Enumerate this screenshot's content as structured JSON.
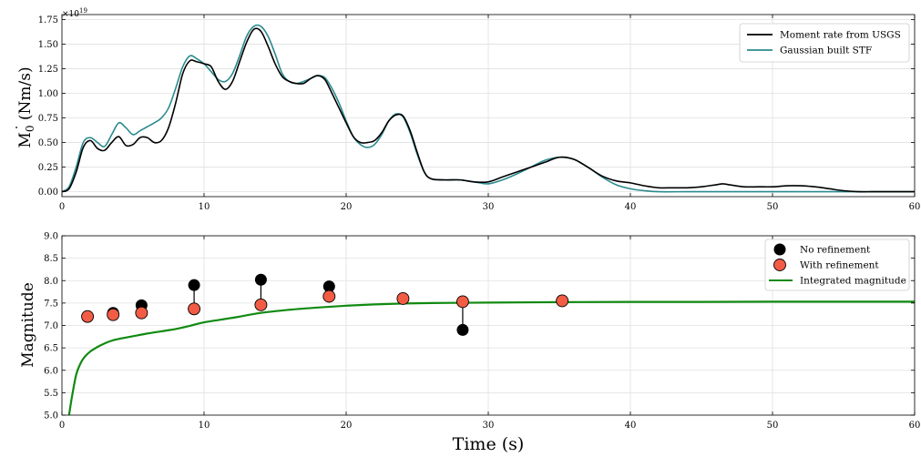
{
  "chart_data": [
    {
      "type": "line",
      "ylabel": "Ṁ0 (Nm/s)",
      "ylabel_main": "M",
      "ylabel_sub": "0",
      "ylabel_unit": " (Nm/s)",
      "offset_text_base": "×10",
      "offset_text_exp": "19",
      "xlim": [
        0,
        60
      ],
      "ylim": [
        -0.05,
        1.8
      ],
      "xticks": [
        "0",
        "10",
        "20",
        "30",
        "40",
        "50",
        "60"
      ],
      "yticks": [
        "0.00",
        "0.25",
        "0.50",
        "0.75",
        "1.00",
        "1.25",
        "1.50",
        "1.75"
      ],
      "grid": true,
      "legend_position": "top-right",
      "series": [
        {
          "name": "Moment rate from USGS",
          "color": "#000000",
          "x": [
            0,
            0.5,
            1,
            1.5,
            2,
            2.5,
            3,
            3.5,
            4,
            4.5,
            5,
            5.5,
            6,
            6.5,
            7,
            7.5,
            8,
            8.5,
            9,
            9.5,
            10,
            10.5,
            11,
            11.5,
            12,
            12.5,
            13,
            13.5,
            14,
            14.5,
            15,
            15.5,
            16,
            16.5,
            17,
            17.5,
            18,
            18.5,
            19,
            19.5,
            20,
            20.5,
            21,
            21.5,
            22,
            22.5,
            23,
            23.5,
            24,
            24.5,
            25,
            25.5,
            26,
            27,
            28,
            29,
            30,
            31,
            32,
            33,
            34,
            35,
            36,
            37,
            38,
            39,
            40,
            41,
            42,
            43,
            44,
            45,
            46,
            46.5,
            47,
            48,
            49,
            50,
            51,
            52,
            53,
            54,
            55,
            56,
            57,
            58,
            59,
            60
          ],
          "y": [
            0.0,
            0.03,
            0.2,
            0.45,
            0.52,
            0.44,
            0.42,
            0.5,
            0.56,
            0.47,
            0.48,
            0.55,
            0.55,
            0.5,
            0.52,
            0.65,
            0.9,
            1.2,
            1.33,
            1.32,
            1.3,
            1.27,
            1.12,
            1.04,
            1.12,
            1.32,
            1.52,
            1.65,
            1.63,
            1.48,
            1.3,
            1.17,
            1.12,
            1.1,
            1.1,
            1.15,
            1.18,
            1.14,
            1.0,
            0.85,
            0.7,
            0.56,
            0.5,
            0.5,
            0.52,
            0.6,
            0.72,
            0.78,
            0.77,
            0.62,
            0.4,
            0.2,
            0.13,
            0.12,
            0.12,
            0.1,
            0.1,
            0.15,
            0.2,
            0.25,
            0.3,
            0.35,
            0.33,
            0.25,
            0.16,
            0.11,
            0.09,
            0.06,
            0.04,
            0.04,
            0.04,
            0.05,
            0.07,
            0.08,
            0.07,
            0.05,
            0.05,
            0.05,
            0.06,
            0.06,
            0.05,
            0.03,
            0.01,
            0.0,
            0.0,
            0.0,
            0.0,
            0.0
          ]
        },
        {
          "name": "Gaussian built STF",
          "color": "#2a8a8e",
          "x": [
            0,
            0.5,
            1,
            1.5,
            2,
            2.5,
            3,
            3.5,
            4,
            4.5,
            5,
            5.5,
            6,
            6.5,
            7,
            7.5,
            8,
            8.5,
            9,
            9.5,
            10,
            10.5,
            11,
            11.5,
            12,
            12.5,
            13,
            13.5,
            14,
            14.5,
            15,
            15.5,
            16,
            16.5,
            17,
            17.5,
            18,
            18.5,
            19,
            19.5,
            20,
            20.5,
            21,
            21.5,
            22,
            22.5,
            23,
            23.5,
            24,
            24.5,
            25,
            25.5,
            26,
            27,
            28,
            29,
            30,
            31,
            32,
            33,
            34,
            35,
            36,
            37,
            38,
            39,
            40,
            41,
            42,
            44,
            46,
            48,
            50,
            52,
            54,
            56,
            58,
            60
          ],
          "y": [
            0.0,
            0.05,
            0.25,
            0.5,
            0.55,
            0.5,
            0.46,
            0.58,
            0.7,
            0.65,
            0.58,
            0.62,
            0.66,
            0.7,
            0.75,
            0.85,
            1.05,
            1.27,
            1.38,
            1.35,
            1.3,
            1.22,
            1.14,
            1.12,
            1.2,
            1.38,
            1.58,
            1.68,
            1.68,
            1.58,
            1.4,
            1.2,
            1.12,
            1.1,
            1.12,
            1.15,
            1.18,
            1.16,
            1.05,
            0.9,
            0.72,
            0.56,
            0.48,
            0.45,
            0.48,
            0.58,
            0.72,
            0.79,
            0.76,
            0.6,
            0.38,
            0.2,
            0.13,
            0.12,
            0.12,
            0.1,
            0.08,
            0.12,
            0.18,
            0.25,
            0.32,
            0.35,
            0.33,
            0.25,
            0.15,
            0.07,
            0.03,
            0.01,
            0.0,
            0.0,
            0.0,
            0.0,
            0.0,
            0.0,
            0.0,
            0.0,
            0.0,
            0.0
          ]
        }
      ]
    },
    {
      "type": "scatter",
      "ylabel": "Magnitude",
      "xlabel": "Time (s)",
      "xlim": [
        0,
        60
      ],
      "ylim": [
        5.0,
        9.0
      ],
      "xticks": [
        "0",
        "10",
        "20",
        "30",
        "40",
        "50",
        "60"
      ],
      "yticks": [
        "5.0",
        "5.5",
        "6.0",
        "6.5",
        "7.0",
        "7.5",
        "8.0",
        "8.5",
        "9.0"
      ],
      "grid": true,
      "legend_position": "top-right",
      "series": [
        {
          "name": "No refinement",
          "color": "#000000",
          "x": [
            1.8,
            3.6,
            5.6,
            9.3,
            14.0,
            18.8,
            24.0,
            28.2,
            35.2
          ],
          "y": [
            7.2,
            7.28,
            7.45,
            7.9,
            8.02,
            7.87,
            7.6,
            6.9,
            7.55
          ]
        },
        {
          "name": "With refinement",
          "color": "#f25c45",
          "x": [
            1.8,
            3.6,
            5.6,
            9.3,
            14.0,
            18.8,
            24.0,
            28.2,
            35.2
          ],
          "y": [
            7.2,
            7.24,
            7.28,
            7.37,
            7.46,
            7.65,
            7.6,
            7.53,
            7.55
          ]
        },
        {
          "name": "Integrated magnitude",
          "color": "#118a11",
          "x": [
            0.5,
            0.7,
            1.0,
            1.3,
            1.6,
            2.0,
            2.5,
            3.0,
            3.5,
            4.0,
            5.0,
            6.0,
            7.0,
            8.0,
            9.0,
            10.0,
            12.0,
            14.0,
            16.0,
            18.0,
            20.0,
            22.0,
            24.0,
            26.0,
            28.0,
            30.0,
            35.0,
            40.0,
            45.0,
            50.0,
            55.0,
            60.0
          ],
          "y": [
            5.0,
            5.4,
            5.9,
            6.15,
            6.3,
            6.42,
            6.52,
            6.6,
            6.66,
            6.7,
            6.76,
            6.82,
            6.87,
            6.92,
            6.99,
            7.07,
            7.17,
            7.28,
            7.35,
            7.4,
            7.44,
            7.47,
            7.49,
            7.5,
            7.505,
            7.51,
            7.52,
            7.525,
            7.525,
            7.53,
            7.53,
            7.53
          ]
        }
      ]
    }
  ]
}
